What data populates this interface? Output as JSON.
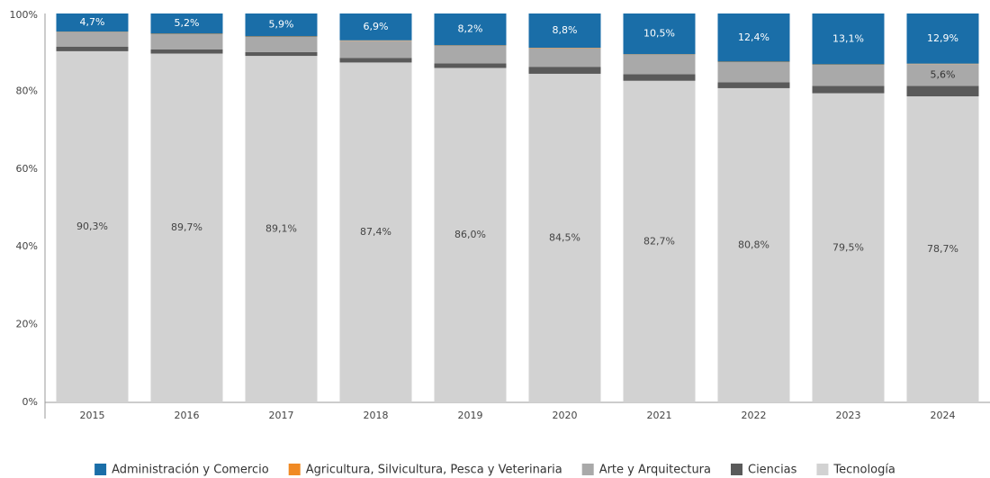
{
  "chart_data": {
    "type": "stacked_bar",
    "categories": [
      "2015",
      "2016",
      "2017",
      "2018",
      "2019",
      "2020",
      "2021",
      "2022",
      "2023",
      "2024"
    ],
    "series": [
      {
        "name": "Administración y Comercio",
        "color": "#1a6ea8",
        "label_color": "#ffffff",
        "values": [
          4.7,
          5.2,
          5.9,
          6.9,
          8.2,
          8.8,
          10.5,
          12.4,
          13.1,
          12.9
        ],
        "value_labels": [
          "4,7%",
          "5,2%",
          "5,9%",
          "6,9%",
          "8,2%",
          "8,8%",
          "10,5%",
          "12,4%",
          "13,1%",
          "12,9%"
        ]
      },
      {
        "name": "Agricultura, Silvicultura, Pesca y Veterinaria",
        "color": "#f08a24",
        "values": [
          0.1,
          0.1,
          0.1,
          0.1,
          0.1,
          0.1,
          0.1,
          0.1,
          0.1,
          0.1
        ]
      },
      {
        "name": "Arte y Arquitectura",
        "color": "#a9a9a9",
        "label_color": "#333333",
        "values": [
          3.7,
          3.9,
          3.9,
          4.4,
          4.5,
          4.8,
          5.0,
          5.2,
          5.4,
          5.6
        ],
        "value_labels": [
          null,
          null,
          null,
          null,
          null,
          null,
          null,
          null,
          null,
          "5,6%"
        ]
      },
      {
        "name": "Ciencias",
        "color": "#5a5a5a",
        "values": [
          1.2,
          1.1,
          1.0,
          1.2,
          1.2,
          1.8,
          1.7,
          1.5,
          1.9,
          2.7
        ]
      },
      {
        "name": "Tecnología",
        "color": "#d2d2d2",
        "label_color": "#444444",
        "values": [
          90.3,
          89.7,
          89.1,
          87.4,
          86.0,
          84.5,
          82.7,
          80.8,
          79.5,
          78.7
        ],
        "value_labels": [
          "90,3%",
          "89,7%",
          "89,1%",
          "87,4%",
          "86,0%",
          "84,5%",
          "82,7%",
          "80,8%",
          "79,5%",
          "78,7%"
        ]
      }
    ],
    "ylim": [
      0,
      100
    ],
    "yticks": [
      {
        "value": 0,
        "label": "0%"
      },
      {
        "value": 20,
        "label": "20%"
      },
      {
        "value": 40,
        "label": "40%"
      },
      {
        "value": 60,
        "label": "60%"
      },
      {
        "value": 80,
        "label": "80%"
      },
      {
        "value": 100,
        "label": "100%"
      }
    ],
    "legend": "bottom"
  }
}
